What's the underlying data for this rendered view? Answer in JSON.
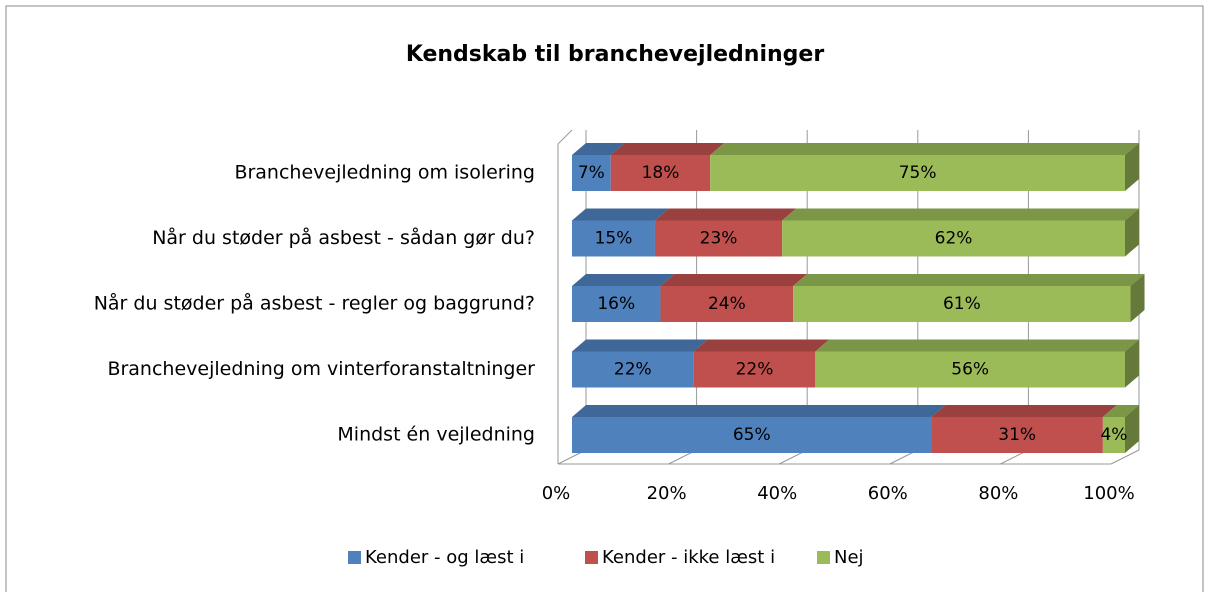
{
  "chart_data": {
    "type": "bar",
    "orientation": "horizontal",
    "stacked": true,
    "title": "Kendskab til branchevejledninger",
    "categories": [
      "Branchevejledning om isolering",
      "Når du støder på asbest - sådan gør du?",
      "Når du støder på asbest - regler og baggrund?",
      "Branchevejledning om vinterforanstaltninger",
      "Mindst én vejledning"
    ],
    "series": [
      {
        "name": "Kender - og læst i",
        "color": "#4f81bd",
        "values": [
          7,
          15,
          16,
          22,
          65
        ],
        "value_labels": [
          "7%",
          "15%",
          "16%",
          "22%",
          "65%"
        ]
      },
      {
        "name": "Kender - ikke læst i",
        "color": "#c0504d",
        "values": [
          18,
          23,
          24,
          22,
          31
        ],
        "value_labels": [
          "18%",
          "23%",
          "24%",
          "22%",
          "31%"
        ]
      },
      {
        "name": "Nej",
        "color": "#9bbb59",
        "values": [
          75,
          62,
          61,
          56,
          4
        ],
        "value_labels": [
          "75%",
          "62%",
          "61%",
          "56%",
          "4%"
        ]
      }
    ],
    "xlim": [
      0,
      100
    ],
    "xticks": [
      {
        "value": 0,
        "label": "0%"
      },
      {
        "value": 20,
        "label": "20%"
      },
      {
        "value": 40,
        "label": "40%"
      },
      {
        "value": 60,
        "label": "60%"
      },
      {
        "value": 80,
        "label": "80%"
      },
      {
        "value": 100,
        "label": "100%"
      }
    ],
    "grid": true,
    "legend": "bottom"
  }
}
